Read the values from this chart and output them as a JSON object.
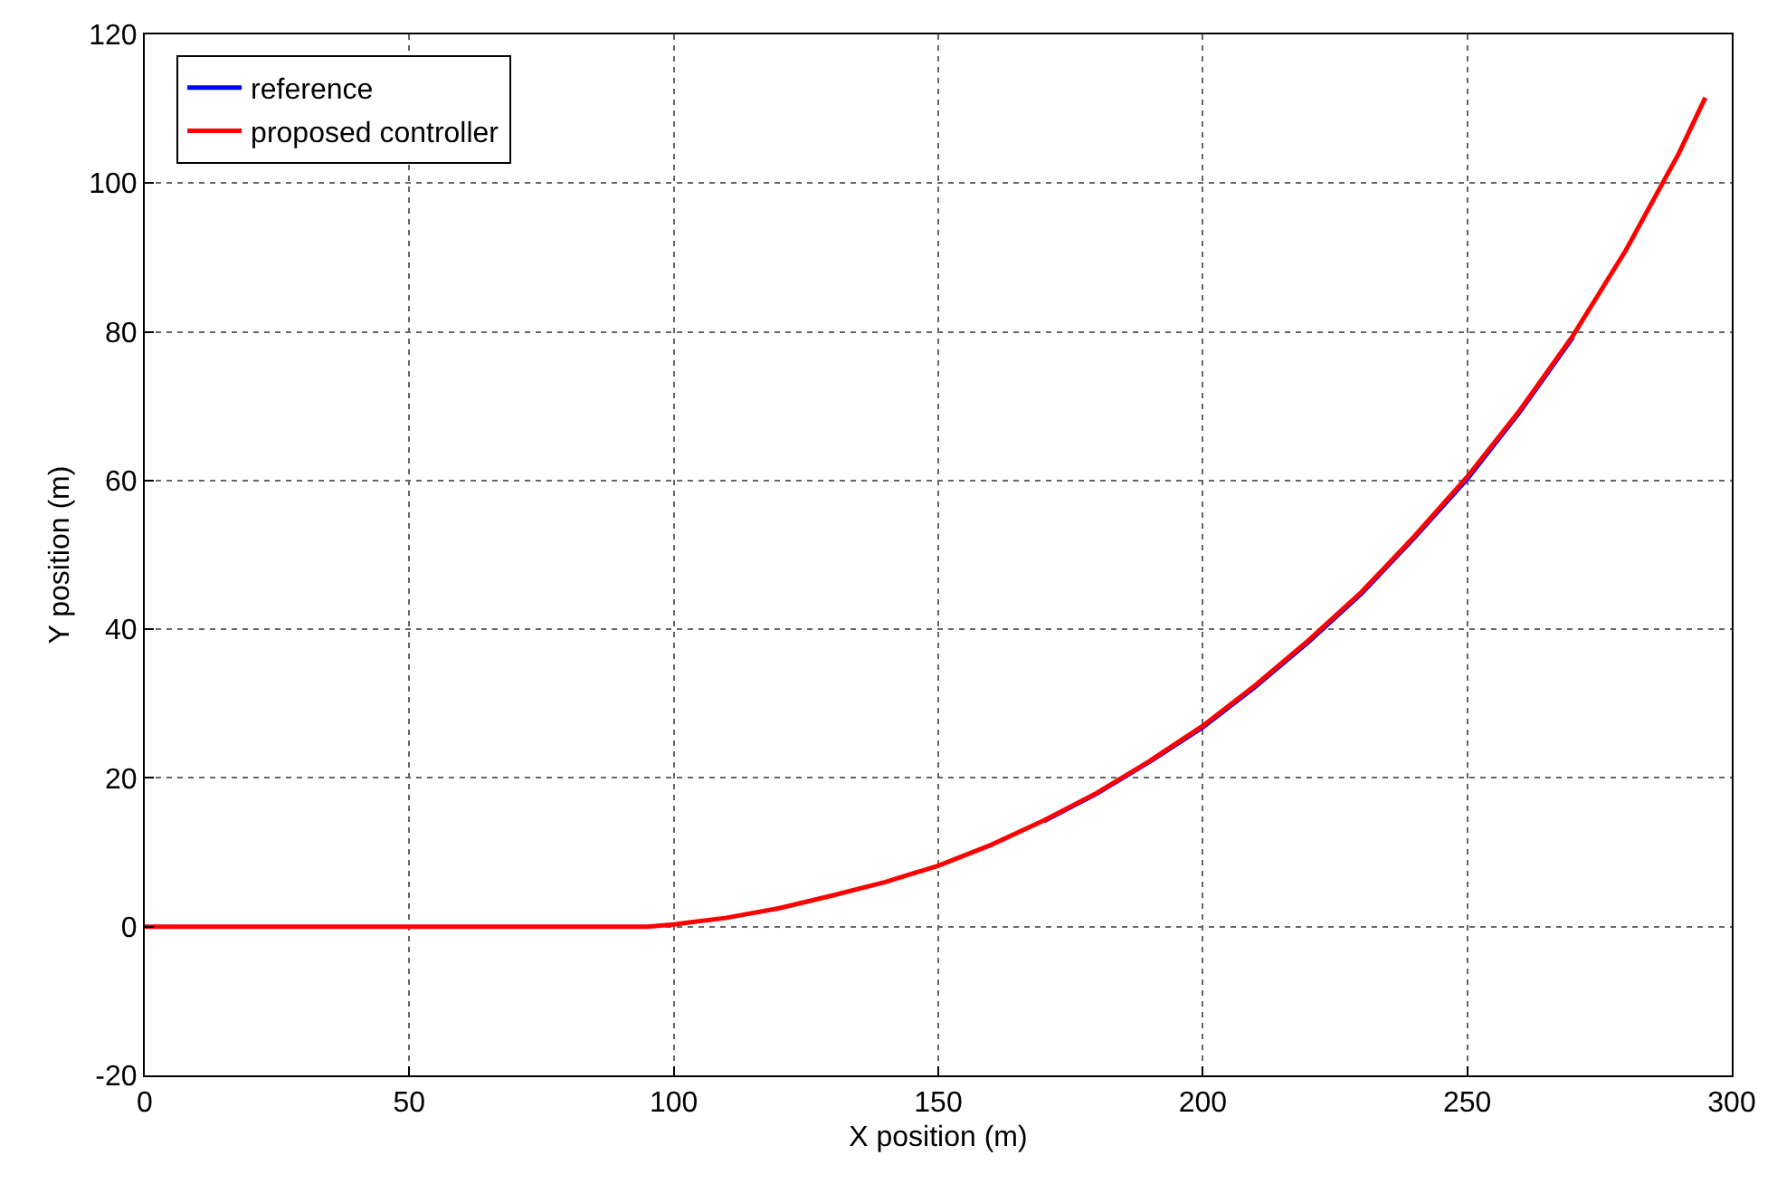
{
  "chart_data": {
    "type": "line",
    "xlabel": "X position (m)",
    "ylabel": "Y position (m)",
    "x": [
      0,
      50,
      95,
      100,
      110,
      120,
      130,
      140,
      150,
      160,
      170,
      180,
      190,
      200,
      210,
      220,
      230,
      240,
      250,
      260,
      270,
      280,
      290,
      295
    ],
    "series": [
      {
        "name": "reference",
        "color": "#0000ff",
        "values": [
          null,
          null,
          null,
          null,
          null,
          null,
          null,
          null,
          null,
          null,
          14.2,
          17.9,
          22.2,
          26.8,
          32.3,
          38.3,
          44.8,
          52.3,
          60.2,
          69.3,
          79.3,
          null,
          null,
          null
        ]
      },
      {
        "name": "proposed controller",
        "color": "#ff0000",
        "values": [
          0,
          0,
          0,
          0.3,
          1.2,
          2.5,
          4.2,
          6,
          8.2,
          11,
          14.3,
          18,
          22.3,
          27,
          32.5,
          38.5,
          45,
          52.5,
          60.5,
          69.5,
          79.5,
          91,
          104,
          111.5
        ]
      }
    ],
    "xlim": [
      0,
      300
    ],
    "xticks": [
      0,
      50,
      100,
      150,
      200,
      250,
      300
    ],
    "ylim": [
      -20,
      120
    ],
    "yticks": [
      -20,
      0,
      20,
      40,
      60,
      80,
      100,
      120
    ],
    "grid": true,
    "legend": "top left",
    "marker": "none",
    "line_style": "solid"
  }
}
